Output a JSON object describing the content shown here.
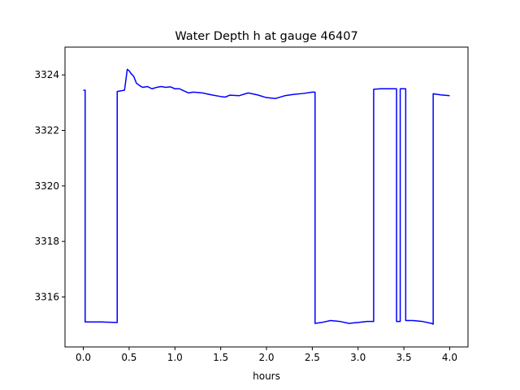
{
  "chart_data": {
    "type": "line",
    "title": "Water Depth h at gauge 46407",
    "xlabel": "hours",
    "ylabel": "",
    "xlim": [
      -0.2,
      4.2
    ],
    "ylim": [
      3314.2,
      3325.0
    ],
    "x_ticks": [
      0.0,
      0.5,
      1.0,
      1.5,
      2.0,
      2.5,
      3.0,
      3.5,
      4.0
    ],
    "x_tick_labels": [
      "0.0",
      "0.5",
      "1.0",
      "1.5",
      "2.0",
      "2.5",
      "3.0",
      "3.5",
      "4.0"
    ],
    "y_ticks": [
      3316,
      3318,
      3320,
      3322,
      3324
    ],
    "y_tick_labels": [
      "3316",
      "3318",
      "3320",
      "3322",
      "3324"
    ],
    "grid": false,
    "series": [
      {
        "color": "#0000ff",
        "x": [
          0.0,
          0.02,
          0.02,
          0.1,
          0.2,
          0.36,
          0.37,
          0.37,
          0.45,
          0.48,
          0.5,
          0.52,
          0.55,
          0.58,
          0.62,
          0.65,
          0.7,
          0.75,
          0.8,
          0.85,
          0.9,
          0.95,
          1.0,
          1.05,
          1.1,
          1.15,
          1.2,
          1.3,
          1.4,
          1.5,
          1.55,
          1.6,
          1.7,
          1.8,
          1.9,
          2.0,
          2.1,
          2.2,
          2.3,
          2.4,
          2.5,
          2.53,
          2.53,
          2.6,
          2.7,
          2.8,
          2.9,
          3.0,
          3.1,
          3.17,
          3.17,
          3.25,
          3.35,
          3.42,
          3.42,
          3.46,
          3.46,
          3.52,
          3.52,
          3.6,
          3.7,
          3.8,
          3.82,
          3.82,
          3.9,
          4.0
        ],
        "y": [
          3323.45,
          3323.45,
          3315.1,
          3315.1,
          3315.1,
          3315.08,
          3315.08,
          3323.4,
          3323.45,
          3324.2,
          3324.15,
          3324.05,
          3323.95,
          3323.7,
          3323.6,
          3323.55,
          3323.58,
          3323.5,
          3323.55,
          3323.58,
          3323.55,
          3323.57,
          3323.5,
          3323.5,
          3323.42,
          3323.35,
          3323.38,
          3323.35,
          3323.28,
          3323.22,
          3323.2,
          3323.27,
          3323.25,
          3323.35,
          3323.28,
          3323.18,
          3323.15,
          3323.25,
          3323.3,
          3323.33,
          3323.38,
          3323.38,
          3315.05,
          3315.08,
          3315.15,
          3315.12,
          3315.05,
          3315.08,
          3315.12,
          3315.12,
          3323.48,
          3323.5,
          3323.5,
          3323.5,
          3315.12,
          3315.12,
          3323.5,
          3323.5,
          3315.15,
          3315.15,
          3315.12,
          3315.05,
          3315.02,
          3323.32,
          3323.28,
          3323.25
        ]
      }
    ]
  }
}
